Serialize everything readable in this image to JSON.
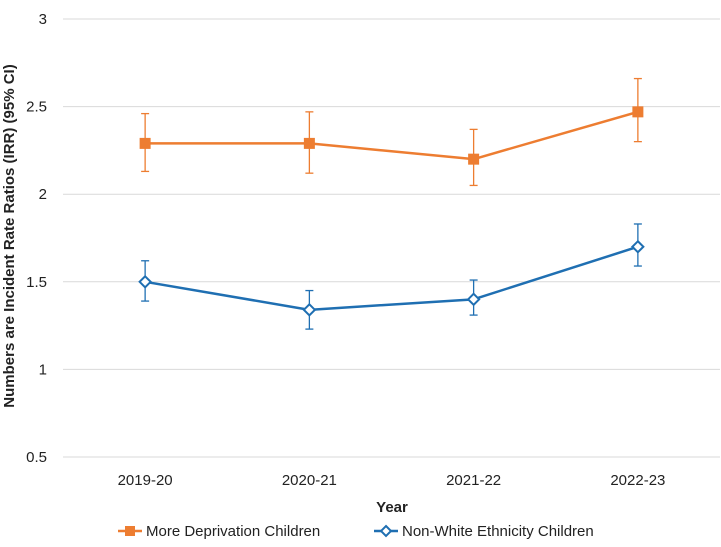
{
  "chart_data": {
    "type": "line",
    "xlabel": "Year",
    "ylabel": "Numbers are Incident Rate Ratios (IRR) (95% CI)",
    "ylim": [
      0.5,
      3
    ],
    "yticks": [
      "0.5",
      "1",
      "1.5",
      "2",
      "2.5",
      "3"
    ],
    "grid": true,
    "legend_position": "bottom",
    "categories": [
      "2019-20",
      "2020-21",
      "2021-22",
      "2022-23"
    ],
    "series": [
      {
        "name": "More Deprivation Children",
        "color": "#ED7D31",
        "marker": "square-filled",
        "values": [
          2.29,
          2.29,
          2.2,
          2.47
        ],
        "ci_low": [
          2.13,
          2.12,
          2.05,
          2.3
        ],
        "ci_high": [
          2.46,
          2.47,
          2.37,
          2.66
        ]
      },
      {
        "name": "Non-White Ethnicity Children",
        "color": "#1F6FB2",
        "marker": "diamond-open",
        "values": [
          1.5,
          1.34,
          1.4,
          1.7
        ],
        "ci_low": [
          1.39,
          1.23,
          1.31,
          1.59
        ],
        "ci_high": [
          1.62,
          1.45,
          1.51,
          1.83
        ]
      }
    ]
  }
}
